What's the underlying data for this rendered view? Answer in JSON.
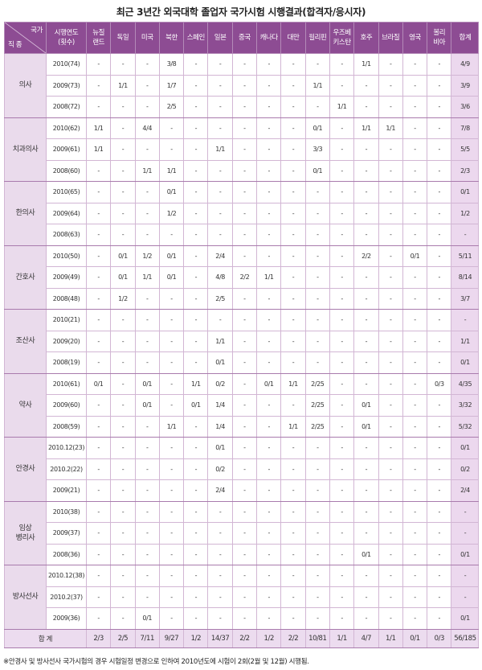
{
  "title": "최근 3년간 외국대학 졸업자 국가시험 시행결과(합격자/응시자)",
  "header": {
    "corner_top": "국가",
    "corner_bottom": "직 종",
    "year": [
      "시행연도",
      "(횟수)"
    ],
    "countries": [
      [
        "뉴질",
        "랜드"
      ],
      [
        "독일"
      ],
      [
        "미국"
      ],
      [
        "북한"
      ],
      [
        "스페인"
      ],
      [
        "일본"
      ],
      [
        "중국"
      ],
      [
        "캐나다"
      ],
      [
        "대만"
      ],
      [
        "필리핀"
      ],
      [
        "우즈베",
        "키스탄"
      ],
      [
        "호주"
      ],
      [
        "브라질"
      ],
      [
        "영국"
      ],
      [
        "볼리",
        "비아"
      ]
    ],
    "total": "합계"
  },
  "groups": [
    {
      "occupation": "의사",
      "rows": [
        {
          "year": "2010(74)",
          "values": [
            "-",
            "-",
            "-",
            "3/8",
            "-",
            "-",
            "-",
            "-",
            "-",
            "-",
            "-",
            "1/1",
            "-",
            "-",
            "-"
          ],
          "total": "4/9"
        },
        {
          "year": "2009(73)",
          "values": [
            "-",
            "1/1",
            "-",
            "1/7",
            "-",
            "-",
            "-",
            "-",
            "-",
            "1/1",
            "-",
            "-",
            "-",
            "-",
            "-"
          ],
          "total": "3/9"
        },
        {
          "year": "2008(72)",
          "values": [
            "-",
            "-",
            "-",
            "2/5",
            "-",
            "-",
            "-",
            "-",
            "-",
            "-",
            "1/1",
            "-",
            "-",
            "-",
            "-"
          ],
          "total": "3/6"
        }
      ]
    },
    {
      "occupation": "치과의사",
      "rows": [
        {
          "year": "2010(62)",
          "values": [
            "1/1",
            "-",
            "4/4",
            "-",
            "-",
            "-",
            "-",
            "-",
            "-",
            "0/1",
            "-",
            "1/1",
            "1/1",
            "-",
            "-"
          ],
          "total": "7/8"
        },
        {
          "year": "2009(61)",
          "values": [
            "1/1",
            "-",
            "-",
            "-",
            "-",
            "1/1",
            "-",
            "-",
            "-",
            "3/3",
            "-",
            "-",
            "-",
            "-",
            "-"
          ],
          "total": "5/5"
        },
        {
          "year": "2008(60)",
          "values": [
            "-",
            "-",
            "1/1",
            "1/1",
            "-",
            "-",
            "-",
            "-",
            "-",
            "0/1",
            "-",
            "-",
            "-",
            "-",
            "-"
          ],
          "total": "2/3"
        }
      ]
    },
    {
      "occupation": "한의사",
      "rows": [
        {
          "year": "2010(65)",
          "values": [
            "-",
            "-",
            "-",
            "0/1",
            "-",
            "-",
            "-",
            "-",
            "-",
            "-",
            "-",
            "-",
            "-",
            "-",
            "-"
          ],
          "total": "0/1"
        },
        {
          "year": "2009(64)",
          "values": [
            "-",
            "-",
            "-",
            "1/2",
            "-",
            "-",
            "-",
            "-",
            "-",
            "-",
            "-",
            "-",
            "-",
            "-",
            "-"
          ],
          "total": "1/2"
        },
        {
          "year": "2008(63)",
          "values": [
            "-",
            "-",
            "-",
            "-",
            "-",
            "-",
            "-",
            "-",
            "-",
            "-",
            "-",
            "-",
            "-",
            "-",
            "-"
          ],
          "total": "-"
        }
      ]
    },
    {
      "occupation": "간호사",
      "rows": [
        {
          "year": "2010(50)",
          "values": [
            "-",
            "0/1",
            "1/2",
            "0/1",
            "-",
            "2/4",
            "-",
            "-",
            "-",
            "-",
            "-",
            "2/2",
            "-",
            "0/1",
            "-"
          ],
          "total": "5/11"
        },
        {
          "year": "2009(49)",
          "values": [
            "-",
            "0/1",
            "1/1",
            "0/1",
            "-",
            "4/8",
            "2/2",
            "1/1",
            "-",
            "-",
            "-",
            "-",
            "-",
            "-",
            "-"
          ],
          "total": "8/14"
        },
        {
          "year": "2008(48)",
          "values": [
            "-",
            "1/2",
            "-",
            "-",
            "-",
            "2/5",
            "-",
            "-",
            "-",
            "-",
            "-",
            "-",
            "-",
            "-",
            "-"
          ],
          "total": "3/7"
        }
      ]
    },
    {
      "occupation": "조산사",
      "rows": [
        {
          "year": "2010(21)",
          "values": [
            "-",
            "-",
            "-",
            "-",
            "-",
            "-",
            "-",
            "-",
            "-",
            "-",
            "-",
            "-",
            "-",
            "-",
            "-"
          ],
          "total": "-"
        },
        {
          "year": "2009(20)",
          "values": [
            "-",
            "-",
            "-",
            "-",
            "-",
            "1/1",
            "-",
            "-",
            "-",
            "-",
            "-",
            "-",
            "-",
            "-",
            "-"
          ],
          "total": "1/1"
        },
        {
          "year": "2008(19)",
          "values": [
            "-",
            "-",
            "-",
            "-",
            "-",
            "0/1",
            "-",
            "-",
            "-",
            "-",
            "-",
            "-",
            "-",
            "-",
            "-"
          ],
          "total": "0/1"
        }
      ]
    },
    {
      "occupation": "약사",
      "rows": [
        {
          "year": "2010(61)",
          "values": [
            "0/1",
            "-",
            "0/1",
            "-",
            "1/1",
            "0/2",
            "-",
            "0/1",
            "1/1",
            "2/25",
            "-",
            "-",
            "-",
            "-",
            "0/3"
          ],
          "total": "4/35"
        },
        {
          "year": "2009(60)",
          "values": [
            "-",
            "-",
            "0/1",
            "-",
            "0/1",
            "1/4",
            "-",
            "-",
            "-",
            "2/25",
            "-",
            "0/1",
            "-",
            "-",
            "-"
          ],
          "total": "3/32"
        },
        {
          "year": "2008(59)",
          "values": [
            "-",
            "-",
            "-",
            "1/1",
            "-",
            "1/4",
            "-",
            "-",
            "1/1",
            "2/25",
            "-",
            "0/1",
            "-",
            "-",
            "-"
          ],
          "total": "5/32"
        }
      ]
    },
    {
      "occupation": "안경사",
      "rows": [
        {
          "year": "2010.12(23)",
          "values": [
            "-",
            "-",
            "-",
            "-",
            "-",
            "0/1",
            "-",
            "-",
            "-",
            "-",
            "-",
            "-",
            "-",
            "-",
            "-"
          ],
          "total": "0/1"
        },
        {
          "year": "2010.2(22)",
          "values": [
            "-",
            "-",
            "-",
            "-",
            "-",
            "0/2",
            "-",
            "-",
            "-",
            "-",
            "-",
            "-",
            "-",
            "-",
            "-"
          ],
          "total": "0/2"
        },
        {
          "year": "2009(21)",
          "values": [
            "-",
            "-",
            "-",
            "-",
            "-",
            "2/4",
            "-",
            "-",
            "-",
            "-",
            "-",
            "-",
            "-",
            "-",
            "-"
          ],
          "total": "2/4"
        }
      ]
    },
    {
      "occupation": "임상\n병리사",
      "rows": [
        {
          "year": "2010(38)",
          "values": [
            "-",
            "-",
            "-",
            "-",
            "-",
            "-",
            "-",
            "-",
            "-",
            "-",
            "-",
            "-",
            "-",
            "-",
            "-"
          ],
          "total": "-"
        },
        {
          "year": "2009(37)",
          "values": [
            "-",
            "-",
            "-",
            "-",
            "-",
            "-",
            "-",
            "-",
            "-",
            "-",
            "-",
            "-",
            "-",
            "-",
            "-"
          ],
          "total": "-"
        },
        {
          "year": "2008(36)",
          "values": [
            "-",
            "-",
            "-",
            "-",
            "-",
            "-",
            "-",
            "-",
            "-",
            "-",
            "-",
            "0/1",
            "-",
            "-",
            "-"
          ],
          "total": "0/1"
        }
      ]
    },
    {
      "occupation": "방사선사",
      "rows": [
        {
          "year": "2010.12(38)",
          "values": [
            "-",
            "-",
            "-",
            "-",
            "-",
            "-",
            "-",
            "-",
            "-",
            "-",
            "-",
            "-",
            "-",
            "-",
            "-"
          ],
          "total": "-"
        },
        {
          "year": "2010.2(37)",
          "values": [
            "-",
            "-",
            "-",
            "-",
            "-",
            "-",
            "-",
            "-",
            "-",
            "-",
            "-",
            "-",
            "-",
            "-",
            "-"
          ],
          "total": "-"
        },
        {
          "year": "2009(36)",
          "values": [
            "-",
            "-",
            "0/1",
            "-",
            "-",
            "-",
            "-",
            "-",
            "-",
            "-",
            "-",
            "-",
            "-",
            "-",
            "-"
          ],
          "total": "0/1"
        }
      ]
    }
  ],
  "summary": {
    "label": "합 계",
    "values": [
      "2/3",
      "2/5",
      "7/11",
      "9/27",
      "1/2",
      "14/37",
      "2/2",
      "1/2",
      "2/2",
      "10/81",
      "1/1",
      "4/7",
      "1/1",
      "0/1",
      "0/3"
    ],
    "total": "56/185"
  },
  "footnote": "※안경사 및 방사선사 국가시험의 경우 시험일정 변경으로 인하여 2010년도에 시험이 2회(2월 및 12월) 시행됨.",
  "colors": {
    "header": "#8d4c93",
    "occupation_bg": "#eadbec",
    "total_bg": "#ecd8ee",
    "grid": "#d2b6d4"
  }
}
